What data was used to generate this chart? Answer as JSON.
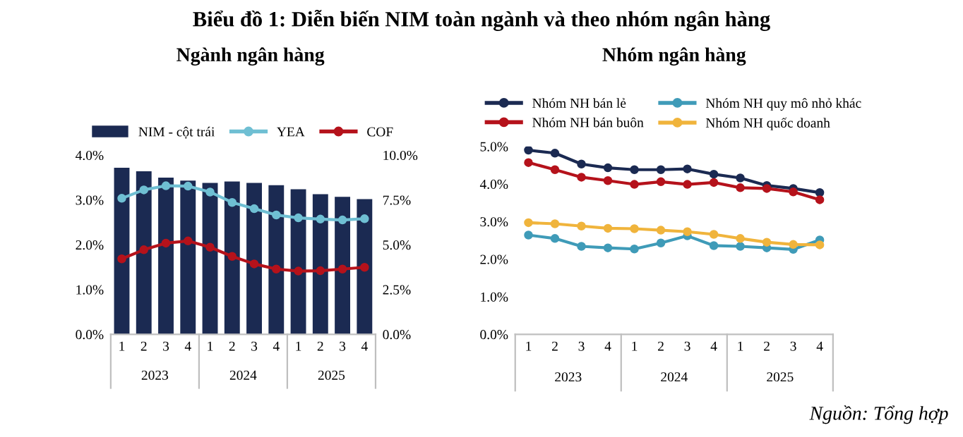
{
  "chart_data": [
    {
      "type": "bar",
      "title": "Biểu đồ 1: Diễn biến NIM toàn ngành và theo nhóm ngân hàng",
      "subtitle": "Ngành ngân hàng",
      "categories": [
        "1",
        "2",
        "3",
        "4",
        "1",
        "2",
        "3",
        "4",
        "1",
        "2",
        "3",
        "4"
      ],
      "series": [
        {
          "name": "NIM - cột trái",
          "type": "bar",
          "color": "#1b2a52",
          "values": [
            3.72,
            3.64,
            3.5,
            3.43,
            3.38,
            3.41,
            3.38,
            3.33,
            3.24,
            3.13,
            3.07,
            3.02
          ]
        },
        {
          "name": "YEA",
          "type": "line",
          "axis": "y2",
          "color": "#6fbfd3",
          "values": [
            7.59,
            8.06,
            8.29,
            8.27,
            7.94,
            7.36,
            7.01,
            6.66,
            6.5,
            6.43,
            6.38,
            6.45
          ]
        },
        {
          "name": "COF",
          "type": "line",
          "axis": "y2",
          "color": "#b5121b",
          "values": [
            4.21,
            4.72,
            5.09,
            5.21,
            4.86,
            4.35,
            3.93,
            3.64,
            3.53,
            3.55,
            3.64,
            3.74
          ]
        }
      ],
      "ylim": [
        0,
        4
      ],
      "yticks": [
        {
          "value": 0,
          "label": "0.0%"
        },
        {
          "value": 1,
          "label": "1.0%"
        },
        {
          "value": 2,
          "label": "2.0%"
        },
        {
          "value": 3,
          "label": "3.0%"
        },
        {
          "value": 4,
          "label": "4.0%"
        }
      ],
      "y2lim": [
        0,
        10
      ],
      "y2ticks": [
        {
          "value": 0,
          "label": "0.0%"
        },
        {
          "value": 2.5,
          "label": "2.5%"
        },
        {
          "value": 5,
          "label": "5.0%"
        },
        {
          "value": 7.5,
          "label": "7.5%"
        },
        {
          "value": 10,
          "label": "10.0%"
        }
      ],
      "annotations": [
        "2023",
        "2024",
        "2025"
      ],
      "legend": "top",
      "marker": "circle",
      "grid": false
    },
    {
      "type": "line",
      "title": "Nhóm ngân hàng",
      "categories": [
        "1",
        "2",
        "3",
        "4",
        "1",
        "2",
        "3",
        "4",
        "1",
        "2",
        "3",
        "4"
      ],
      "series": [
        {
          "name": "Nhóm NH bán lẻ",
          "color": "#1b2a52",
          "values": [
            4.9,
            4.82,
            4.53,
            4.43,
            4.38,
            4.38,
            4.4,
            4.26,
            4.16,
            3.96,
            3.88,
            3.77
          ]
        },
        {
          "name": "Nhóm NH bán buôn",
          "color": "#b5121b",
          "values": [
            4.57,
            4.38,
            4.18,
            4.09,
            3.99,
            4.06,
            3.99,
            4.04,
            3.9,
            3.88,
            3.79,
            3.58
          ]
        },
        {
          "name": "Nhóm NH quy mô nhỏ khác",
          "color": "#3f9bb8",
          "values": [
            2.64,
            2.55,
            2.34,
            2.3,
            2.27,
            2.43,
            2.62,
            2.36,
            2.34,
            2.3,
            2.26,
            2.51
          ]
        },
        {
          "name": "Nhóm NH quốc doanh",
          "color": "#f0b43c",
          "values": [
            2.97,
            2.94,
            2.88,
            2.82,
            2.81,
            2.77,
            2.73,
            2.66,
            2.55,
            2.45,
            2.39,
            2.38
          ]
        }
      ],
      "ylim": [
        0,
        5
      ],
      "yticks": [
        {
          "value": 0,
          "label": "0.0%"
        },
        {
          "value": 1,
          "label": "1.0%"
        },
        {
          "value": 2,
          "label": "2.0%"
        },
        {
          "value": 3,
          "label": "3.0%"
        },
        {
          "value": 4,
          "label": "4.0%"
        },
        {
          "value": 5,
          "label": "5.0%"
        }
      ],
      "annotations": [
        "2023",
        "2024",
        "2025",
        "Nguồn: Tổng hợp"
      ],
      "legend": "top",
      "marker": "circle",
      "grid": false
    }
  ]
}
